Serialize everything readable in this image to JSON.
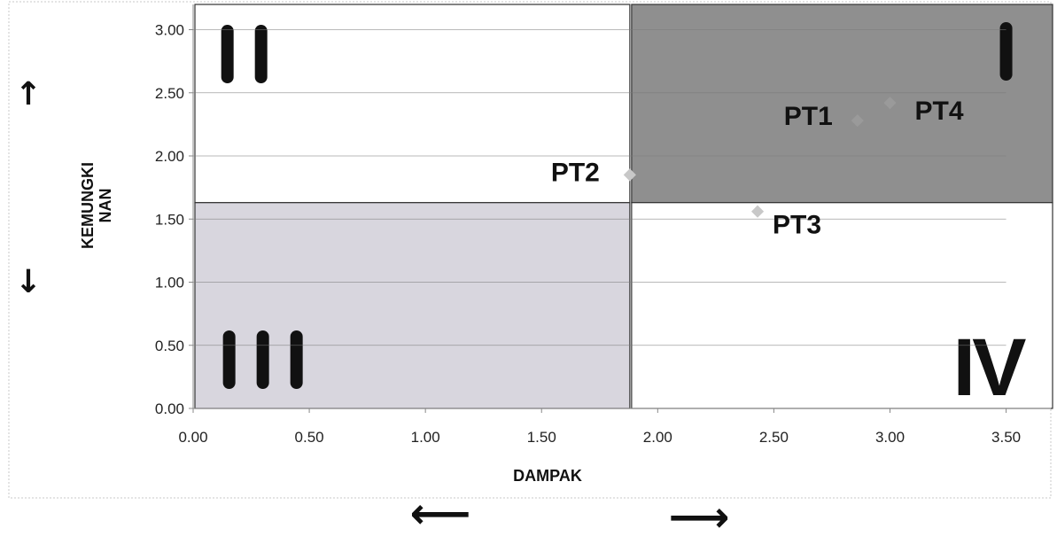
{
  "chart_data": {
    "type": "scatter",
    "xlabel": "DAMPAK",
    "ylabel": "KEMUNGKINAN",
    "ylabel_lines": [
      "KEMUNGKI",
      "NAN"
    ],
    "xlim": [
      0,
      3.7
    ],
    "ylim": [
      0,
      3.2
    ],
    "x_ticks": [
      "0.00",
      "0.50",
      "1.00",
      "1.50",
      "2.00",
      "2.50",
      "3.00",
      "3.50"
    ],
    "y_ticks": [
      "0.00",
      "0.50",
      "1.00",
      "1.50",
      "2.00",
      "2.50",
      "3.00"
    ],
    "grid": "horizontal",
    "points": [
      {
        "label": "PT1",
        "x": 2.86,
        "y": 2.28
      },
      {
        "label": "PT2",
        "x": 1.88,
        "y": 1.85
      },
      {
        "label": "PT3",
        "x": 2.43,
        "y": 1.56
      },
      {
        "label": "PT4",
        "x": 3.0,
        "y": 2.42
      }
    ],
    "quadrants": [
      {
        "label": "I",
        "x_range": [
          1.88,
          3.7
        ],
        "y_range": [
          1.63,
          3.2
        ],
        "fill": "#8f8f8f"
      },
      {
        "label": "II",
        "x_range": [
          0,
          1.88
        ],
        "y_range": [
          1.63,
          3.2
        ],
        "fill": "#ffffff"
      },
      {
        "label": "III",
        "x_range": [
          0,
          1.88
        ],
        "y_range": [
          0,
          1.63
        ],
        "fill": "#d8d6de"
      },
      {
        "label": "IV",
        "x_range": [
          1.88,
          3.7
        ],
        "y_range": [
          0,
          1.63
        ],
        "fill": "#ffffff"
      }
    ],
    "arrows": {
      "y_up": "↑",
      "y_down": "↓",
      "x_left": "⟵",
      "x_right": "⟶"
    },
    "colors": {
      "marker": "#9a9a9a",
      "marker_light": "#c8c8c8",
      "grid": "#7a7a7a"
    }
  }
}
